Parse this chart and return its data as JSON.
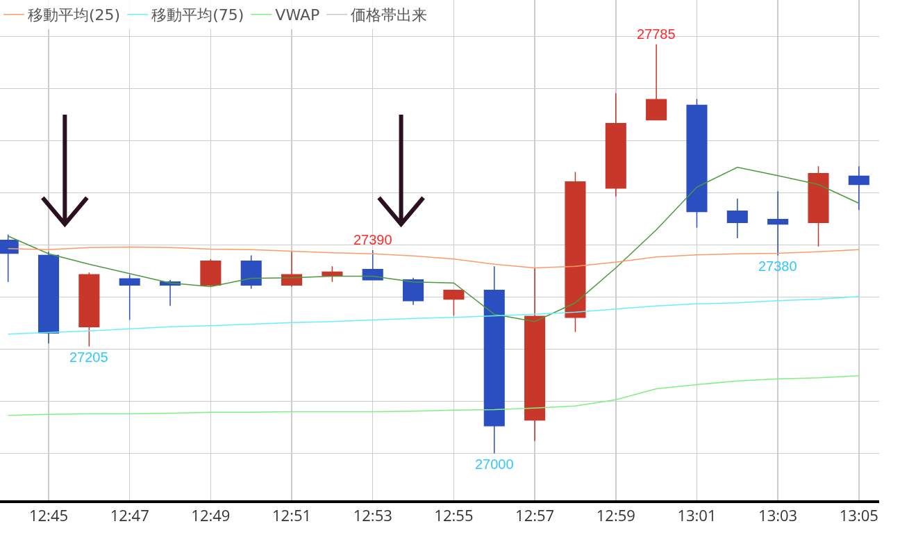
{
  "chart_data": {
    "type": "candlestick",
    "categories": [
      null,
      "12:45",
      null,
      "12:47",
      null,
      "12:49",
      null,
      "12:51",
      null,
      "12:53",
      null,
      "12:55",
      null,
      "12:57",
      null,
      "12:59",
      null,
      "13:01",
      null,
      "13:03",
      null,
      "13:05"
    ],
    "ohlc": [
      [
        27409,
        27420,
        27329,
        27384
      ],
      [
        27380,
        27387,
        27211,
        27231
      ],
      [
        27243,
        27347,
        27205,
        27343
      ],
      [
        27335,
        27343,
        27256,
        27323
      ],
      [
        27329,
        27333,
        27283,
        27323
      ],
      [
        27323,
        27373,
        27320,
        27369
      ],
      [
        27369,
        27380,
        27316,
        27323
      ],
      [
        27323,
        27387,
        27320,
        27343
      ],
      [
        27341,
        27359,
        27329,
        27348
      ],
      [
        27353,
        27390,
        27333,
        27333
      ],
      [
        27333,
        27337,
        27285,
        27293
      ],
      [
        27296,
        27313,
        27264,
        27313
      ],
      [
        27313,
        27359,
        27000,
        27053
      ],
      [
        27064,
        27356,
        27024,
        27263
      ],
      [
        27261,
        27540,
        27233,
        27521
      ],
      [
        27509,
        27691,
        27493,
        27633
      ],
      [
        27640,
        27785,
        27640,
        27679
      ],
      [
        27668,
        27680,
        27433,
        27464
      ],
      [
        27465,
        27489,
        27413,
        27443
      ],
      [
        27449,
        27503,
        27380,
        27440
      ],
      [
        27443,
        27551,
        27397,
        27537
      ],
      [
        27532,
        27551,
        27467,
        27516
      ]
    ],
    "colors": [
      "#2b4ec0",
      "#2b4ec0",
      "#c8382a",
      "#2b4ec0",
      "#2b4ec0",
      "#c8382a",
      "#2b4ec0",
      "#c8382a",
      "#c8382a",
      "#2b4ec0",
      "#2b4ec0",
      "#c8382a",
      "#2b4ec0",
      "#c8382a",
      "#c8382a",
      "#c8382a",
      "#c8382a",
      "#2b4ec0",
      "#2b4ec0",
      "#2b4ec0",
      "#c8382a",
      "#2b4ec0"
    ],
    "series": [
      {
        "type": "line",
        "color": "#4a9a3c",
        "values": [
          27417,
          27383,
          27363,
          27345,
          27327,
          27320,
          27336,
          27337,
          27340,
          27340,
          27329,
          27327,
          27267,
          27253,
          27289,
          27356,
          27429,
          27511,
          27549,
          27533,
          27516,
          27480
        ]
      },
      {
        "type": "line",
        "name": "移動平均(25)",
        "color": "#ff9a66",
        "values": [
          27393,
          27391,
          27395,
          27396,
          27395,
          27392,
          27391,
          27388,
          27385,
          27383,
          27379,
          27373,
          27363,
          27356,
          27359,
          27367,
          27377,
          27381,
          27383,
          27384,
          27387,
          27391
        ]
      },
      {
        "type": "line",
        "name": "移動平均(75)",
        "color": "#66f0ff",
        "values": [
          27229,
          27232,
          27235,
          27239,
          27243,
          27245,
          27248,
          27251,
          27253,
          27256,
          27259,
          27261,
          27264,
          27267,
          27271,
          27277,
          27283,
          27287,
          27289,
          27293,
          27296,
          27301
        ]
      },
      {
        "type": "line",
        "name": "VWAP",
        "color": "#80f080",
        "values": [
          27073,
          27075,
          27076,
          27076,
          27077,
          27079,
          27079,
          27080,
          27080,
          27080,
          27081,
          27083,
          27084,
          27087,
          27091,
          27103,
          27124,
          27132,
          27139,
          27143,
          27145,
          27149
        ]
      },
      {
        "type": "line",
        "name": "価格帯出来",
        "color": "#c8c8c8",
        "values": [
          null,
          null,
          null,
          null,
          null,
          null,
          null,
          null,
          null,
          null,
          null,
          null,
          null,
          null,
          null,
          null,
          null,
          null,
          null,
          null,
          null,
          null
        ]
      }
    ],
    "annotations": [
      {
        "text": "27785",
        "y": 27785
      },
      {
        "text": "27390",
        "x": "12:53",
        "y": 27390
      },
      {
        "text": "27205",
        "y": 27205
      },
      {
        "text": "27000",
        "y": 27000
      },
      {
        "text": "27380",
        "x": "13:03",
        "y": 27380
      }
    ],
    "ylim": [
      26910,
      27870
    ],
    "yticks": [
      {
        "value": 27000,
        "label": null
      },
      {
        "value": 27100,
        "label": null
      },
      {
        "value": 27200,
        "label": null
      },
      {
        "value": 27300,
        "label": null
      },
      {
        "value": 27400,
        "label": null
      },
      {
        "value": 27500,
        "label": null
      },
      {
        "value": 27600,
        "label": null
      },
      {
        "value": 27700,
        "label": null
      },
      {
        "value": 27800,
        "label": null
      }
    ],
    "grid": true,
    "legend": "top left",
    "tick_labels": "x",
    "line_style": "solid",
    "marker": "none"
  }
}
